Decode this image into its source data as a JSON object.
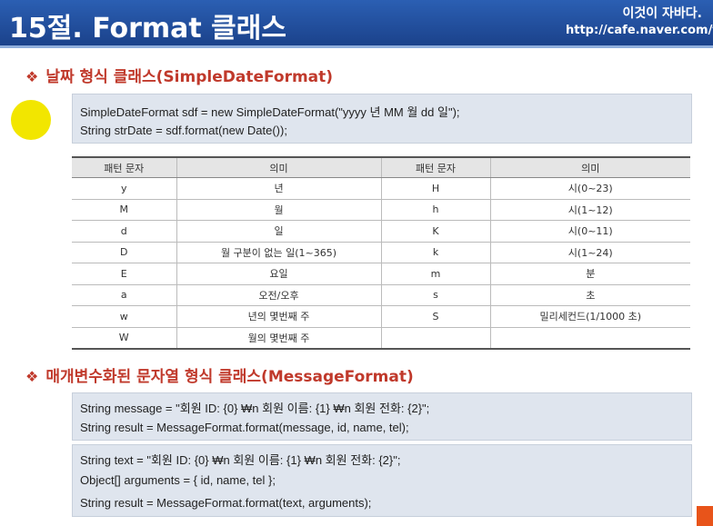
{
  "header": {
    "title": "15절. Format 클래스",
    "brand": "이것이 자바다.",
    "url": "http://cafe.naver.com/thi"
  },
  "section1": {
    "bullet": "❖",
    "title": "날짜 형식 클래스(SimpleDateFormat)",
    "code": [
      "SimpleDateFormat sdf = new SimpleDateFormat(\"yyyy 년  MM 월  dd 일\");",
      "String strDate = sdf.format(new  Date());"
    ]
  },
  "table": {
    "headers": [
      "패턴 문자",
      "의미",
      "패턴 문자",
      "의미"
    ],
    "rows": [
      [
        "y",
        "년",
        "H",
        "시(0~23)"
      ],
      [
        "M",
        "월",
        "h",
        "시(1~12)"
      ],
      [
        "d",
        "일",
        "K",
        "시(0~11)"
      ],
      [
        "D",
        "월 구분이 없는 일(1~365)",
        "k",
        "시(1~24)"
      ],
      [
        "E",
        "요일",
        "m",
        "분"
      ],
      [
        "a",
        "오전/오후",
        "s",
        "초"
      ],
      [
        "w",
        "년의 몇번째 주",
        "S",
        "밀리세컨드(1/1000 초)"
      ],
      [
        "W",
        "월의 몇번째 주",
        "",
        ""
      ]
    ]
  },
  "section2": {
    "bullet": "❖",
    "title": "매개변수화된 문자열 형식 클래스(MessageFormat)",
    "code1": [
      "String message = \"회원 ID: {0} ₩n 회원  이름: {1} ₩n 회원  전화: {2}\";",
      "String result = MessageFormat.format(message, id, name, tel);"
    ],
    "code2": [
      "String text = \"회원 ID: {0} ₩n 회원  이름: {1} ₩n 회원  전화: {2}\";",
      "Object[] arguments = { id, name, tel };",
      "String result = MessageFormat.format(text,  arguments);"
    ]
  }
}
